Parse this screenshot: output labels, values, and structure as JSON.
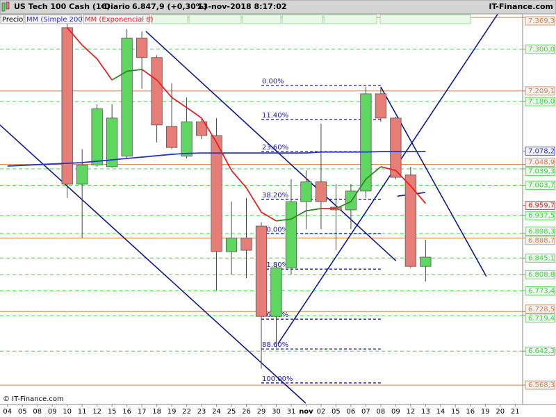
{
  "chart_data": {
    "type": "candlestick",
    "title": "US Tech 100 Cash (1€)",
    "period": "Diario",
    "quote": "6.847,9 (+0,30%)",
    "timestamp": "13-nov-2018 8:17:02",
    "source": "IT-Finance.com",
    "copyright": "© IT-Finance.com",
    "price_label": "Precio",
    "categories": [
      "04",
      "05",
      "08",
      "09",
      "10",
      "11",
      "12",
      "15",
      "16",
      "17",
      "18",
      "19",
      "22",
      "23",
      "24",
      "25",
      "26",
      "29",
      "30",
      "31",
      "nov",
      "02",
      "05",
      "06",
      "07",
      "08",
      "09",
      "12",
      "13",
      "14",
      "15",
      "16",
      "19",
      "20",
      "21"
    ],
    "bold_category_index": 20,
    "open": [
      null,
      null,
      null,
      null,
      7347,
      7006,
      7048,
      7044,
      7067,
      7324,
      7282,
      7132,
      7067,
      7142,
      7112,
      6859,
      6889,
      6915,
      6718,
      6824,
      6968,
      7011,
      6956,
      6950,
      6991,
      7203,
      7150,
      7026,
      6827,
      null,
      null,
      null,
      null,
      null,
      null
    ],
    "high": [
      null,
      null,
      null,
      null,
      7377,
      7082,
      7180,
      7180,
      7344,
      7339,
      7287,
      7226,
      7195,
      7150,
      7150,
      6968,
      6976,
      6923,
      6832,
      7017,
      7036,
      7138,
      7006,
      7006,
      7218,
      7218,
      7153,
      7044,
      6885,
      null,
      null,
      null,
      null,
      null,
      null
    ],
    "low": [
      null,
      null,
      null,
      null,
      6976,
      6889,
      7044,
      7042,
      7062,
      7214,
      7097,
      7082,
      7062,
      7104,
      6774,
      6809,
      6801,
      6604,
      6650,
      6809,
      6908,
      6908,
      6862,
      6908,
      6976,
      7142,
      7017,
      6824,
      6794,
      null,
      null,
      null,
      null,
      null,
      null
    ],
    "close": [
      null,
      null,
      null,
      null,
      7006,
      7048,
      7170,
      7150,
      7324,
      7282,
      7135,
      7086,
      7142,
      7112,
      6859,
      6889,
      6862,
      6718,
      6824,
      6968,
      7011,
      6968,
      6950,
      6991,
      7203,
      7150,
      7021,
      6827,
      6847,
      null,
      null,
      null,
      null,
      null,
      null
    ],
    "up_color": "#5fd65f",
    "down_color": "#e67d76",
    "series": [
      {
        "name": "MM (Simple 200)",
        "color": "#2a34c0",
        "values": [
          7045.5,
          7047,
          7048.5,
          7050,
          7051.5,
          7053,
          7056,
          7059,
          7062,
          7065,
          7068,
          7071,
          7073,
          7074,
          7074,
          7074,
          7074,
          7074,
          7074,
          7074,
          7074,
          7076,
          7076,
          7076,
          7076,
          7077,
          7077,
          7077,
          7077,
          null,
          null,
          null,
          null,
          null,
          null
        ],
        "last_label": {
          "value": 7078.2,
          "label": "7.078,2"
        }
      },
      {
        "name": "MM (Exponencial 8)",
        "color": "#e82020",
        "rise_color": "#2e8c1e",
        "values": [
          null,
          null,
          null,
          null,
          7347,
          7309,
          7279,
          7233,
          7252,
          7256,
          7233,
          7195,
          7173,
          7150,
          7097,
          7036,
          6998,
          6945,
          6926,
          6930,
          6948,
          6953,
          6953,
          6968,
          7017,
          7044,
          7036,
          7002,
          6964,
          null,
          null,
          null,
          null,
          null,
          null
        ],
        "last_label": {
          "value": 6959.7,
          "label": "6.959,7"
        }
      }
    ],
    "ylim": [
      6526,
      7377
    ],
    "levels": [
      {
        "value": 7369.3,
        "label": "7.369,3",
        "color": "#d88048",
        "dash": false
      },
      {
        "value": 7300.0,
        "label": "7.300,0",
        "color": "#33dd33",
        "dash": true
      },
      {
        "value": 7209.1,
        "label": "7.209,1",
        "color": "#d88048",
        "dash": false
      },
      {
        "value": 7186.0,
        "label": "7.186,0",
        "color": "#33dd33",
        "dash": true
      },
      {
        "value": 7048.9,
        "label": "7.048,9",
        "color": "#d88048",
        "dash": false
      },
      {
        "value": 7039.3,
        "label": "7.039,3",
        "color": "#33dd33",
        "dash": true
      },
      {
        "value": 7003.7,
        "label": "7.003,7",
        "color": "#33dd33",
        "dash": true
      },
      {
        "value": 6937.5,
        "label": "6.937,5",
        "color": "#33dd33",
        "dash": true
      },
      {
        "value": 6898.3,
        "label": "6.898,3",
        "color": "#33dd33",
        "dash": true
      },
      {
        "value": 6888.7,
        "label": "6.888,7",
        "color": "#d88048",
        "dash": false
      },
      {
        "value": 6845.1,
        "label": "6.845,1",
        "color": "#33dd33",
        "dash": true
      },
      {
        "value": 6808.8,
        "label": "6.808,8",
        "color": "#33dd33",
        "dash": true
      },
      {
        "value": 6773.4,
        "label": "6.773,4",
        "color": "#33dd33",
        "dash": true
      },
      {
        "value": 6728.5,
        "label": "6.728,5",
        "color": "#d88048",
        "dash": false
      },
      {
        "value": 6719.4,
        "label": "6.719,4",
        "color": "#33dd33",
        "dash": true
      },
      {
        "value": 6642.3,
        "label": "6.642,3",
        "color": "#33dd33",
        "dash": true
      },
      {
        "value": 6568.3,
        "label": "6.568,3",
        "color": "#d88048",
        "dash": false
      }
    ],
    "fibonacci": {
      "color": "#1a1aa0",
      "span": [
        17,
        25
      ],
      "levels": [
        {
          "label": "0.00%",
          "price": 7221
        },
        {
          "label": "11.40%",
          "price": 7147
        },
        {
          "label": "23.60%",
          "price": 7077
        },
        {
          "label": "38.20%",
          "price": 6973
        },
        {
          "label": "50.00%",
          "price": 6898
        },
        {
          "label": "61.80%",
          "price": 6821
        },
        {
          "label": "76.40%",
          "price": 6712
        },
        {
          "label": "88.60%",
          "price": 6647
        },
        {
          "label": "100.00%",
          "price": 6573
        }
      ]
    },
    "trend_color": "#0c1890",
    "trend_lines": [
      [
        [
          -0.5,
          7135
        ],
        [
          19.97,
          6529
        ]
      ],
      [
        [
          9.27,
          7339
        ],
        [
          26.02,
          6839
        ]
      ],
      [
        [
          18.11,
          6658
        ],
        [
          33.0,
          7385
        ]
      ],
      [
        [
          25.0,
          7218
        ],
        [
          32.07,
          6805
        ]
      ],
      [
        [
          26.12,
          6980
        ],
        [
          27.98,
          6988
        ]
      ]
    ]
  }
}
